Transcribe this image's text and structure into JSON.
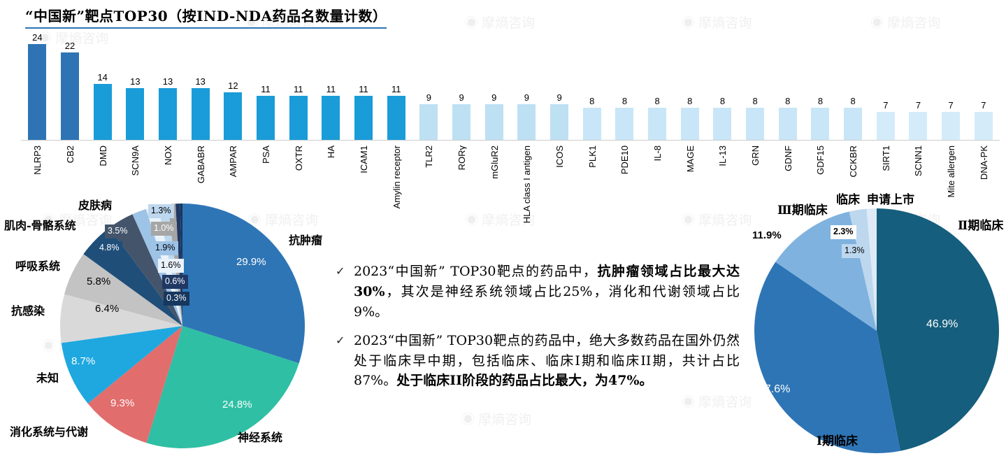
{
  "title": "“中国新”靶点TOP30（按IND-NDA药品名数量计数）",
  "watermark": {
    "icon": "◉",
    "text": "摩熵咨询"
  },
  "bullets": {
    "check": "✓",
    "items": [
      {
        "p1": "2023“中国新” TOP30靶点的药品中，",
        "p2": "抗肿瘤领域占比最大达30%",
        "p3": "，其次是神经系统领域占比25%，消化和代谢领域占比9%。"
      },
      {
        "p1": "2023“中国新” TOP30靶点的药品中，绝大多数药品在国外仍然处于临床早中期，包括临床、临床I期和临床II期，共计占比87%。",
        "p2": "处于临床II阶段的药品占比最大，为47%。"
      }
    ]
  },
  "chart_data": [
    {
      "id": "bar_top30",
      "type": "bar",
      "title": "“中国新”靶点TOP30（按IND-NDA药品名数量计数）",
      "categories": [
        "NLRP3",
        "CB2",
        "DMD",
        "SCN9A",
        "NOX",
        "GABABR",
        "AMPAR",
        "PSA",
        "OXTR",
        "HA",
        "ICAM1",
        "Amylin receptor",
        "TLR2",
        "RORγ",
        "mGluR2",
        "HLA class I antigen",
        "ICOS",
        "PLK1",
        "PDE10",
        "IL-8",
        "MAGE",
        "IL-13",
        "GRN",
        "GDNF",
        "GDF15",
        "CCKBR",
        "SIRT1",
        "SCNN1",
        "Mite allergen",
        "DNA-PK"
      ],
      "values": [
        24,
        22,
        14,
        13,
        13,
        13,
        12,
        11,
        11,
        11,
        11,
        11,
        9,
        9,
        9,
        9,
        9,
        8,
        8,
        8,
        8,
        8,
        8,
        8,
        8,
        8,
        7,
        7,
        7,
        7
      ],
      "bar_colors": [
        "#2E74B5",
        "#2E74B5",
        "#199CD8",
        "#199CD8",
        "#199CD8",
        "#199CD8",
        "#199CD8",
        "#199CD8",
        "#199CD8",
        "#199CD8",
        "#199CD8",
        "#199CD8",
        "#BEE0F3",
        "#BEE0F3",
        "#BEE0F3",
        "#BEE0F3",
        "#BEE0F3",
        "#C8E6F7",
        "#C8E6F7",
        "#C8E6F7",
        "#C8E6F7",
        "#C8E6F7",
        "#C8E6F7",
        "#C8E6F7",
        "#C8E6F7",
        "#C8E6F7",
        "#D4ECFA",
        "#D4ECFA",
        "#D4ECFA",
        "#D4ECFA"
      ],
      "ylim": [
        0,
        26
      ],
      "grid": false
    },
    {
      "id": "pie_therapeutic_area",
      "type": "pie",
      "start_angle_deg": -90,
      "direction": "clockwise",
      "slices": [
        {
          "name": "抗肿瘤",
          "value": 29.9,
          "display": "29.9%",
          "color": "#2E75B6"
        },
        {
          "name": "神经系统",
          "value": 24.8,
          "display": "24.8%",
          "color": "#2FBFA4"
        },
        {
          "name": "消化系统与代谢",
          "value": 9.3,
          "display": "9.3%",
          "color": "#E26D6D"
        },
        {
          "name": "未知",
          "value": 8.7,
          "display": "8.7%",
          "color": "#1FA8E0"
        },
        {
          "name": "抗感染",
          "value": 6.4,
          "display": "6.4%",
          "color": "#D9D9D9"
        },
        {
          "name": "呼吸系统",
          "value": 5.8,
          "display": "5.8%",
          "color": "#C3C3C3"
        },
        {
          "name": "",
          "value": 4.8,
          "display": "4.8%",
          "color": "#1F4E79"
        },
        {
          "name": "肌肉-骨骼系统",
          "value": 3.5,
          "display": "3.5%",
          "color": "#44546A"
        },
        {
          "name": "",
          "value": 1.9,
          "display": "1.9%",
          "color": "#9DC3E6"
        },
        {
          "name": "",
          "value": 1.6,
          "display": "1.6%",
          "color": "#EAF2FB"
        },
        {
          "name": "皮肤病",
          "value": 1.3,
          "display": "1.3%",
          "color": "#BDD7EE"
        },
        {
          "name": "",
          "value": 1.0,
          "display": "1.0%",
          "color": "#A6A6A6"
        },
        {
          "name": "",
          "value": 0.6,
          "display": "0.6%",
          "color": "#203864"
        },
        {
          "name": "",
          "value": 0.3,
          "display": "0.3%",
          "color": "#17375E"
        }
      ]
    },
    {
      "id": "pie_clinical_stage",
      "type": "pie",
      "start_angle_deg": -90,
      "direction": "clockwise",
      "slices": [
        {
          "name": "Ⅱ期临床",
          "value": 46.9,
          "display": "46.9%",
          "color": "#155E7D"
        },
        {
          "name": "Ⅰ期临床",
          "value": 37.6,
          "display": "37.6%",
          "color": "#2E75B6"
        },
        {
          "name": "Ⅲ期临床",
          "value": 11.9,
          "display": "11.9%",
          "color": "#7FB2DE"
        },
        {
          "name": "临床",
          "value": 2.3,
          "display": "2.3%",
          "color": "#BDD7EE"
        },
        {
          "name": "申请上市",
          "value": 1.3,
          "display": "1.3%",
          "color": "#DEEBF7"
        }
      ]
    }
  ]
}
